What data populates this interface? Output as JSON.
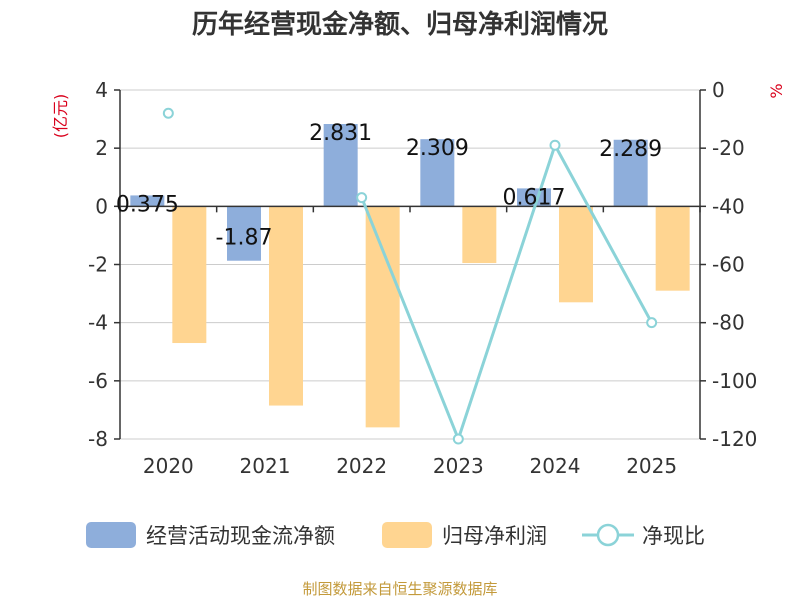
{
  "title": "历年经营现金净额、归母净利润情况",
  "watermark": "制图数据来自恒生聚源数据库",
  "colors": {
    "cash": "#8EAEDB",
    "profit": "#FFD591",
    "ratio": "#8BD3D8",
    "axis": "#333333",
    "grid": "#cccccc",
    "unit_label": "#d9001b",
    "watermark": "#c39a3b"
  },
  "chart_data": {
    "type": "bar",
    "title": "历年经营现金净额、归母净利润情况",
    "categories": [
      "2020",
      "2021",
      "2022",
      "2023",
      "2024",
      "2025"
    ],
    "left_axis": {
      "label": "(亿元)",
      "ylim": [
        -8,
        4
      ],
      "ticks": [
        "4",
        "2",
        "0",
        "-2",
        "-4",
        "-6",
        "-8"
      ]
    },
    "right_axis": {
      "label": "%",
      "ylim": [
        -120,
        0
      ],
      "ticks": [
        "0",
        "-20",
        "-40",
        "-60",
        "-80",
        "-100",
        "-120"
      ]
    },
    "series": [
      {
        "name": "经营活动现金流净额",
        "type": "bar",
        "axis": "left",
        "values": [
          0.375,
          -1.87,
          2.831,
          2.309,
          0.617,
          2.289
        ],
        "labels": [
          "0.375",
          "-1.87",
          "2.831",
          "2.309",
          "0.617",
          "2.289"
        ]
      },
      {
        "name": "归母净利润",
        "type": "bar",
        "axis": "left",
        "values": [
          -4.7,
          -6.85,
          -7.6,
          -1.95,
          -3.3,
          -2.9
        ]
      },
      {
        "name": "净现比",
        "type": "line",
        "axis": "right",
        "values": [
          -8,
          null,
          -37,
          -120,
          -19,
          -80
        ]
      }
    ],
    "legend": [
      "经营活动现金流净额",
      "归母净利润",
      "净现比"
    ],
    "legend_position": "bottom",
    "grid": true
  }
}
